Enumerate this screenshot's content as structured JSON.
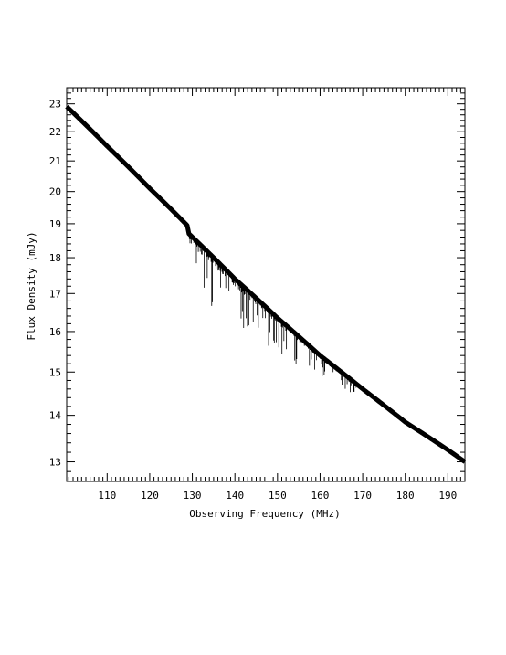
{
  "chart_data": {
    "type": "line",
    "xlabel": "Observing Frequency (MHz)",
    "ylabel": "Flux Density (mJy)",
    "x_scale": "linear",
    "y_scale": "log",
    "xlim": [
      100.5,
      194
    ],
    "ylim": [
      12.6,
      23.6
    ],
    "x_ticks": [
      110,
      120,
      130,
      140,
      150,
      160,
      170,
      180,
      190
    ],
    "y_ticks": [
      13,
      14,
      15,
      16,
      17,
      18,
      19,
      20,
      21,
      22,
      23
    ],
    "grid": false,
    "legend": "none",
    "series": [
      {
        "x": [
          100.5,
          110,
          120,
          128.8,
          129.2,
          140,
          150,
          160,
          170,
          180,
          190,
          194
        ],
        "values": [
          22.9,
          21.5,
          20.1,
          18.95,
          18.7,
          17.4,
          16.35,
          15.4,
          14.6,
          13.85,
          13.25,
          13.0
        ],
        "noise_start": 129,
        "noise_end": 170
      }
    ]
  }
}
